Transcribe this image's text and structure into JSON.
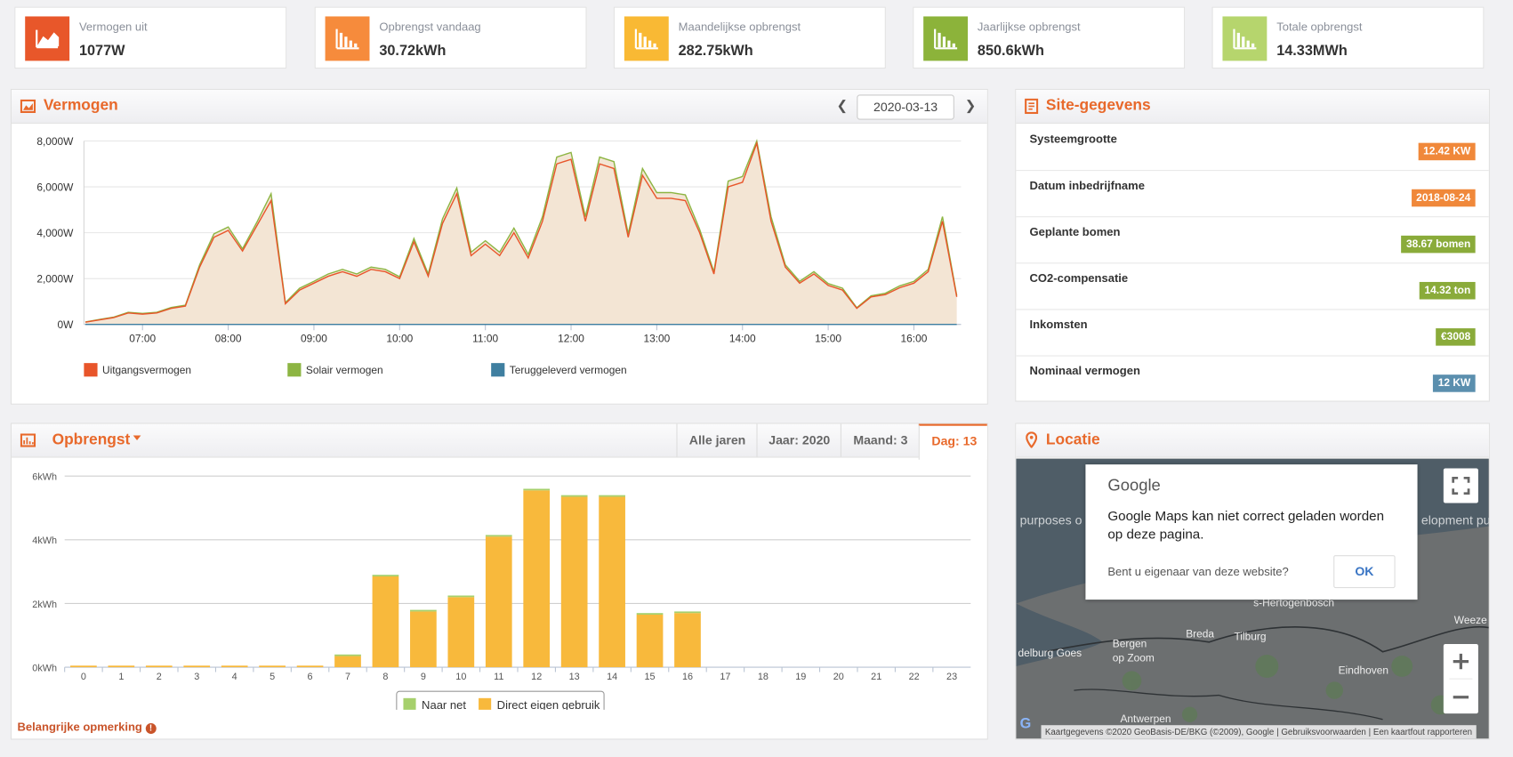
{
  "stats": [
    {
      "label": "Vermogen uit",
      "value": "1077W",
      "color": "#e8572a"
    },
    {
      "label": "Opbrengst vandaag",
      "value": "30.72kWh",
      "color": "#f68b3c"
    },
    {
      "label": "Maandelijkse opbrengst",
      "value": "282.75kWh",
      "color": "#f9b934"
    },
    {
      "label": "Jaarlijkse opbrengst",
      "value": "850.6kWh",
      "color": "#8cb33a"
    },
    {
      "label": "Totale opbrengst",
      "value": "14.33MWh",
      "color": "#b6d56d"
    }
  ],
  "power_panel": {
    "title": "Vermogen",
    "date": "2020-03-13"
  },
  "site_panel": {
    "title": "Site-gegevens",
    "rows": [
      {
        "label": "Systeemgrootte",
        "value": "12.42 KW",
        "color": "#f0883a"
      },
      {
        "label": "Datum inbedrijfname",
        "value": "2018-08-24",
        "color": "#f0883a"
      },
      {
        "label": "Geplante bomen",
        "value": "38.67 bomen",
        "color": "#8aab3a"
      },
      {
        "label": "CO2-compensatie",
        "value": "14.32 ton",
        "color": "#8aab3a"
      },
      {
        "label": "Inkomsten",
        "value": "€3008",
        "color": "#8aab3a"
      },
      {
        "label": "Nominaal vermogen",
        "value": "12 KW",
        "color": "#5b8fae"
      }
    ]
  },
  "yield_panel": {
    "title": "Opbrengst",
    "tabs": [
      "Alle jaren",
      "Jaar: 2020",
      "Maand: 3",
      "Dag: 13"
    ],
    "active_tab": 3,
    "note": "Belangrijke opmerking"
  },
  "location_panel": {
    "title": "Locatie",
    "map_labels": [
      "purposes o",
      "elopment pu",
      "s-Hertogenbosch",
      "Bergen",
      "op Zoom",
      "Breda",
      "Tilburg",
      "Eindhoven",
      "Weeze",
      "delburg Goes",
      "Antwerpen"
    ],
    "dialog": {
      "brand": "Google",
      "message": "Google Maps kan niet correct geladen worden op deze pagina.",
      "question": "Bent u eigenaar van deze website?",
      "button": "OK"
    },
    "attribution": [
      "Kaartgegevens ©2020 GeoBasis-DE/BKG (©2009), Google",
      "Gebruiksvoorwaarden",
      "Een kaartfout rapporteren"
    ]
  },
  "chart_data": [
    {
      "type": "line",
      "area_color": "#f3e5d4",
      "grid": true,
      "x": [
        "06:20",
        "06:30",
        "06:40",
        "06:50",
        "07:00",
        "07:10",
        "07:20",
        "07:30",
        "07:40",
        "07:50",
        "08:00",
        "08:10",
        "08:20",
        "08:30",
        "08:40",
        "08:50",
        "09:00",
        "09:10",
        "09:20",
        "09:30",
        "09:40",
        "09:50",
        "10:00",
        "10:10",
        "10:20",
        "10:30",
        "10:40",
        "10:50",
        "11:00",
        "11:10",
        "11:20",
        "11:30",
        "11:40",
        "11:50",
        "12:00",
        "12:10",
        "12:20",
        "12:30",
        "12:40",
        "12:50",
        "13:00",
        "13:10",
        "13:20",
        "13:30",
        "13:40",
        "13:50",
        "14:00",
        "14:10",
        "14:20",
        "14:30",
        "14:40",
        "14:50",
        "15:00",
        "15:10",
        "15:20",
        "15:30",
        "15:40",
        "15:50",
        "16:00",
        "16:10",
        "16:20",
        "16:30"
      ],
      "series": [
        {
          "name": "Uitgangsvermogen",
          "color": "#e8552a",
          "values": [
            100,
            200,
            300,
            500,
            450,
            500,
            700,
            800,
            2500,
            3800,
            4100,
            3200,
            4300,
            5400,
            900,
            1500,
            1800,
            2100,
            2300,
            2100,
            2400,
            2300,
            2000,
            3600,
            2100,
            4400,
            5700,
            3000,
            3500,
            3000,
            4000,
            2900,
            4500,
            7000,
            7200,
            4500,
            7000,
            6800,
            3800,
            6500,
            5500,
            5500,
            5400,
            4000,
            2200,
            6000,
            6200,
            7900,
            4500,
            2500,
            1800,
            2200,
            1700,
            1500,
            700,
            1200,
            1300,
            1600,
            1800,
            2300,
            4500,
            1200
          ]
        },
        {
          "name": "Solair vermogen",
          "color": "#8db543",
          "values": [
            110,
            220,
            320,
            530,
            480,
            530,
            740,
            840,
            2600,
            3950,
            4250,
            3300,
            4450,
            5700,
            950,
            1580,
            1880,
            2200,
            2400,
            2200,
            2500,
            2400,
            2080,
            3750,
            2200,
            4600,
            5950,
            3150,
            3650,
            3150,
            4200,
            3050,
            4700,
            7300,
            7500,
            4700,
            7300,
            7100,
            3950,
            6800,
            5750,
            5750,
            5650,
            4150,
            2300,
            6250,
            6450,
            8000,
            4700,
            2600,
            1880,
            2300,
            1780,
            1580,
            730,
            1250,
            1360,
            1680,
            1880,
            2400,
            4700,
            1260
          ]
        },
        {
          "name": "Teruggeleverd vermogen",
          "color": "#3f7fa0",
          "values": [
            0,
            0,
            0,
            0,
            0,
            0,
            0,
            0,
            0,
            0,
            0,
            0,
            0,
            0,
            0,
            0,
            0,
            0,
            0,
            0,
            0,
            0,
            0,
            0,
            0,
            0,
            0,
            0,
            0,
            0,
            0,
            0,
            0,
            0,
            0,
            0,
            0,
            0,
            0,
            0,
            0,
            0,
            0,
            0,
            0,
            0,
            0,
            0,
            0,
            0,
            0,
            0,
            0,
            0,
            0,
            0,
            0,
            0,
            0,
            0,
            0,
            0
          ]
        }
      ],
      "xlim": [
        "06:19",
        "16:33"
      ],
      "xticks": [
        "07:00",
        "08:00",
        "09:00",
        "10:00",
        "11:00",
        "12:00",
        "13:00",
        "14:00",
        "15:00",
        "16:00"
      ],
      "ylim": [
        0,
        8000
      ],
      "yticks": [
        {
          "value": 0,
          "label": "0W"
        },
        {
          "value": 2000,
          "label": "2,000W"
        },
        {
          "value": 4000,
          "label": "4,000W"
        },
        {
          "value": 6000,
          "label": "6,000W"
        },
        {
          "value": 8000,
          "label": "8,000W"
        }
      ]
    },
    {
      "type": "stacked_bar",
      "grid": true,
      "categories": [
        "0",
        "1",
        "2",
        "3",
        "4",
        "5",
        "6",
        "7",
        "8",
        "9",
        "10",
        "11",
        "12",
        "13",
        "14",
        "15",
        "16",
        "17",
        "18",
        "19",
        "20",
        "21",
        "22",
        "23"
      ],
      "series": [
        {
          "name": "Naar net",
          "color": "#a6d06c",
          "values": [
            0,
            0,
            0,
            0,
            0,
            0,
            0,
            0.05,
            0.05,
            0.05,
            0.05,
            0.05,
            0.05,
            0.05,
            0.05,
            0.05,
            0.05,
            0,
            0,
            0,
            0,
            0,
            0,
            0
          ]
        },
        {
          "name": "Direct eigen gebruik",
          "color": "#f8b93c",
          "values": [
            0.05,
            0.05,
            0.05,
            0.05,
            0.05,
            0.05,
            0.05,
            0.35,
            2.85,
            1.75,
            2.2,
            4.1,
            5.55,
            5.35,
            5.35,
            1.65,
            1.7,
            0,
            0,
            0,
            0,
            0,
            0,
            0
          ]
        }
      ],
      "ylim": [
        0,
        6
      ],
      "yticks": [
        {
          "value": 0,
          "label": "0kWh"
        },
        {
          "value": 2,
          "label": "2kWh"
        },
        {
          "value": 4,
          "label": "4kWh"
        },
        {
          "value": 6,
          "label": "6kWh"
        }
      ]
    }
  ]
}
